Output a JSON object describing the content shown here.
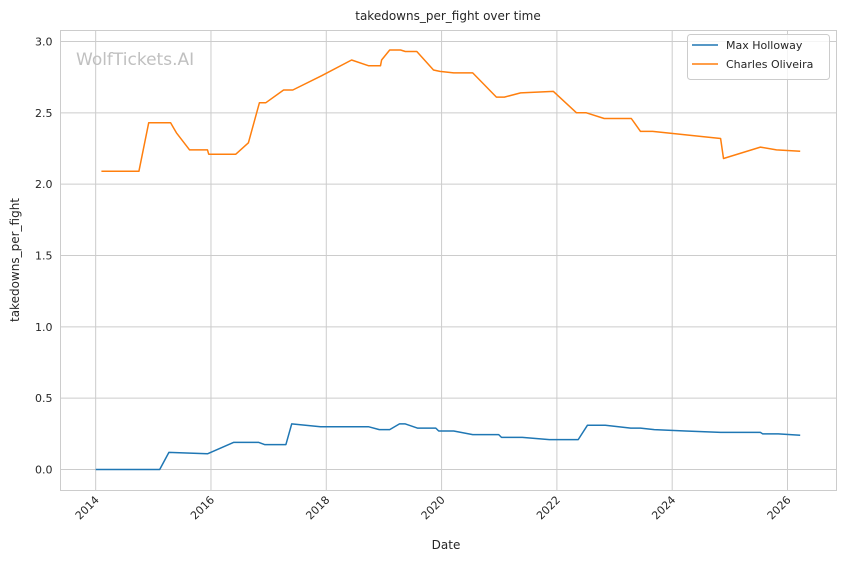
{
  "chart_data": {
    "type": "line",
    "title": "takedowns_per_fight over time",
    "xlabel": "Date",
    "ylabel": "takedowns_per_fight",
    "watermark": "WolfTickets.AI",
    "xlim": [
      2013.39,
      2026.85
    ],
    "ylim": [
      -0.147,
      3.077
    ],
    "xticks": [
      2014,
      2016,
      2018,
      2020,
      2022,
      2024,
      2026
    ],
    "xtick_labels": [
      "2014",
      "2016",
      "2018",
      "2020",
      "2022",
      "2024",
      "2026"
    ],
    "yticks": [
      0,
      0.5,
      1,
      1.5,
      2,
      2.5,
      3
    ],
    "ytick_labels": [
      "0.0",
      "0.5",
      "1.0",
      "1.5",
      "2.0",
      "2.5",
      "3.0"
    ],
    "grid": true,
    "legend_position": "top-right",
    "series": [
      {
        "name": "Max Holloway",
        "color": "#1f77b4",
        "x": [
          2014.0,
          2015.11,
          2015.27,
          2015.94,
          2016.39,
          2016.83,
          2016.93,
          2017.3,
          2017.4,
          2017.9,
          2018.73,
          2018.92,
          2019.1,
          2019.27,
          2019.37,
          2019.58,
          2019.9,
          2019.95,
          2020.21,
          2020.54,
          2020.99,
          2021.04,
          2021.4,
          2021.87,
          2022.37,
          2022.53,
          2022.84,
          2023.28,
          2023.45,
          2023.69,
          2024.23,
          2024.84,
          2025.53,
          2025.57,
          2025.84,
          2026.22
        ],
        "y": [
          0,
          0,
          0.12,
          0.11,
          0.19,
          0.19,
          0.175,
          0.175,
          0.32,
          0.3,
          0.3,
          0.28,
          0.28,
          0.32,
          0.32,
          0.29,
          0.29,
          0.27,
          0.27,
          0.245,
          0.245,
          0.225,
          0.225,
          0.21,
          0.21,
          0.31,
          0.31,
          0.29,
          0.29,
          0.28,
          0.27,
          0.26,
          0.26,
          0.25,
          0.25,
          0.24
        ]
      },
      {
        "name": "Charles Oliveira",
        "color": "#ff7f0e",
        "x": [
          2014.1,
          2014.75,
          2014.92,
          2015.3,
          2015.4,
          2015.63,
          2015.94,
          2015.96,
          2016.43,
          2016.65,
          2016.84,
          2016.95,
          2017.26,
          2017.42,
          2017.92,
          2018.44,
          2018.73,
          2018.94,
          2018.96,
          2019.1,
          2019.29,
          2019.37,
          2019.57,
          2019.86,
          2019.97,
          2020.21,
          2020.54,
          2020.95,
          2021.09,
          2021.37,
          2021.94,
          2022.34,
          2022.51,
          2022.82,
          2023.29,
          2023.45,
          2023.66,
          2024.84,
          2024.89,
          2025.53,
          2025.81,
          2026.22
        ],
        "y": [
          2.09,
          2.09,
          2.43,
          2.43,
          2.36,
          2.24,
          2.24,
          2.21,
          2.21,
          2.29,
          2.57,
          2.57,
          2.66,
          2.66,
          2.76,
          2.87,
          2.83,
          2.83,
          2.87,
          2.94,
          2.94,
          2.93,
          2.93,
          2.8,
          2.79,
          2.78,
          2.78,
          2.61,
          2.61,
          2.64,
          2.65,
          2.5,
          2.5,
          2.46,
          2.46,
          2.37,
          2.37,
          2.32,
          2.18,
          2.26,
          2.24,
          2.23
        ]
      }
    ]
  }
}
